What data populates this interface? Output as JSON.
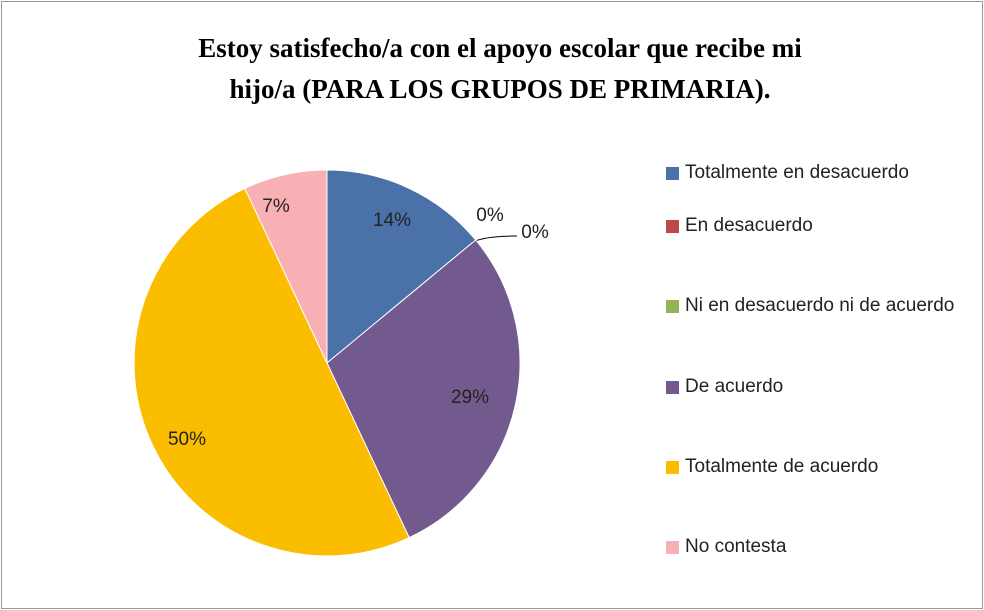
{
  "chart_data": {
    "type": "pie",
    "title": [
      "Estoy satisfecho/a con el apoyo escolar que recibe mi",
      "hijo/a (PARA LOS GRUPOS DE PRIMARIA)."
    ],
    "categories": [
      "Totalmente en desacuerdo",
      "En desacuerdo",
      "Ni en desacuerdo ni de acuerdo",
      "De acuerdo",
      "Totalmente de acuerdo",
      "No contesta"
    ],
    "values": [
      14,
      0,
      0,
      29,
      50,
      7
    ],
    "value_labels": [
      "14%",
      "0%",
      "0%",
      "29%",
      "50%",
      "7%"
    ],
    "colors": [
      "#4a72a8",
      "#b94a48",
      "#94b454",
      "#725a8e",
      "#fbbd00",
      "#f9b0b4"
    ],
    "legend": "right"
  }
}
